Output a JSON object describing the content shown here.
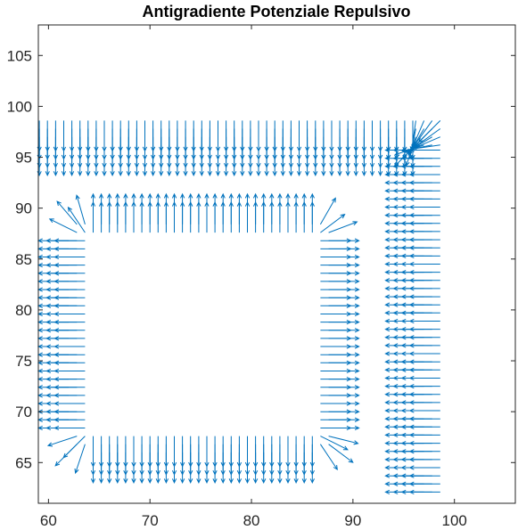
{
  "chart_data": {
    "type": "quiver",
    "title": "Antigradiente Potenziale Repulsivo",
    "xlabel": "",
    "ylabel": "",
    "xlim": [
      59,
      106
    ],
    "ylim": [
      61,
      108
    ],
    "x_ticks": [
      60,
      70,
      80,
      90,
      100
    ],
    "y_ticks": [
      65,
      70,
      75,
      80,
      85,
      90,
      95,
      100,
      105
    ],
    "grid": false,
    "arrow_color": "#0072BD",
    "obstacles": [
      {
        "name": "rectangle",
        "x_range": [
          64,
          86
        ],
        "y_range": [
          68,
          87
        ],
        "band_width": 2,
        "grid_spacing": 0.8,
        "field_direction": "outward"
      },
      {
        "name": "wall-L",
        "horizontal_segment": {
          "x_range": [
            59,
            96
          ],
          "y_band": [
            96,
            99
          ],
          "field_direction": "down"
        },
        "vertical_segment": {
          "x_band": [
            96,
            99
          ],
          "y_range": [
            62,
            96
          ],
          "field_direction": "left"
        },
        "grid_spacing": 0.8
      }
    ]
  }
}
